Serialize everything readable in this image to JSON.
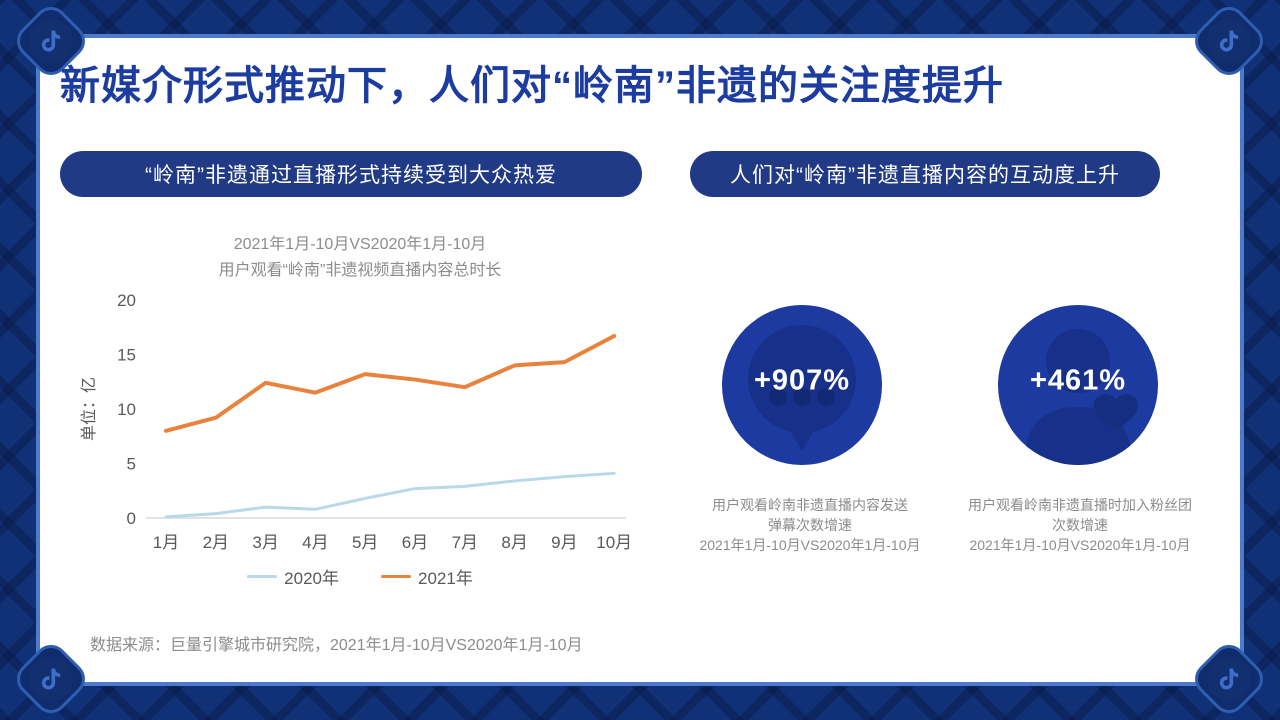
{
  "page": {
    "title": "新媒介形式推动下，人们对“岭南”非遗的关注度提升",
    "source": "数据来源：巨量引擎城市研究院，2021年1月-10月VS2020年1月-10月"
  },
  "left_panel": {
    "header": "“岭南”非遗通过直播形式持续受到大众热爱",
    "chart_title_line1": "2021年1月-10月VS2020年1月-10月",
    "chart_title_line2": "用户观看“岭南”非遗视频直播内容总时长"
  },
  "right_panel": {
    "header": "人们对“岭南”非遗直播内容的互动度上升",
    "stats": [
      {
        "value": "+907%",
        "icon": "danmaku-comment-bubble",
        "caption_line1": "用户观看岭南非遗直播内容发送",
        "caption_line2": "弹幕次数增速",
        "caption_line3": "2021年1月-10月VS2020年1月-10月"
      },
      {
        "value": "+461%",
        "icon": "fan-club-user-heart",
        "caption_line1": "用户观看岭南非遗直播时加入粉丝团",
        "caption_line2": "次数增速",
        "caption_line3": "2021年1月-10月VS2020年1月-10月"
      }
    ]
  },
  "chart_data": {
    "type": "line",
    "title": "2021年1月-10月VS2020年1月-10月 用户观看“岭南”非遗视频直播内容总时长",
    "xlabel": "",
    "ylabel": "单位：亿",
    "categories": [
      "1月",
      "2月",
      "3月",
      "4月",
      "5月",
      "6月",
      "7月",
      "8月",
      "9月",
      "10月"
    ],
    "series": [
      {
        "name": "2020年",
        "color": "#b9d9ea",
        "values": [
          0.1,
          0.4,
          1.0,
          0.8,
          1.8,
          2.7,
          2.9,
          3.4,
          3.8,
          4.1
        ]
      },
      {
        "name": "2021年",
        "color": "#e8823c",
        "values": [
          8.0,
          9.2,
          12.4,
          11.5,
          13.2,
          12.7,
          12.0,
          14.0,
          14.3,
          16.7
        ]
      }
    ],
    "yticks": [
      0,
      5,
      10,
      15,
      20
    ],
    "ylim": [
      0,
      20
    ],
    "grid": false,
    "legend_position": "bottom"
  },
  "colors": {
    "title_blue": "#1d3ca0",
    "pill_navy": "#203a85",
    "circle_navy": "#1c3a9f",
    "icon_navy": "#17318a",
    "icon_navy_dark": "#122a76",
    "series_2020": "#b9d9ea",
    "series_2021": "#e8823c",
    "gray_text": "#8c8c8c",
    "axis_gray": "#d9d9d9",
    "tick_gray": "#595959",
    "border_navy": "#113177",
    "frame_line_blue": "#4d7bcb"
  }
}
